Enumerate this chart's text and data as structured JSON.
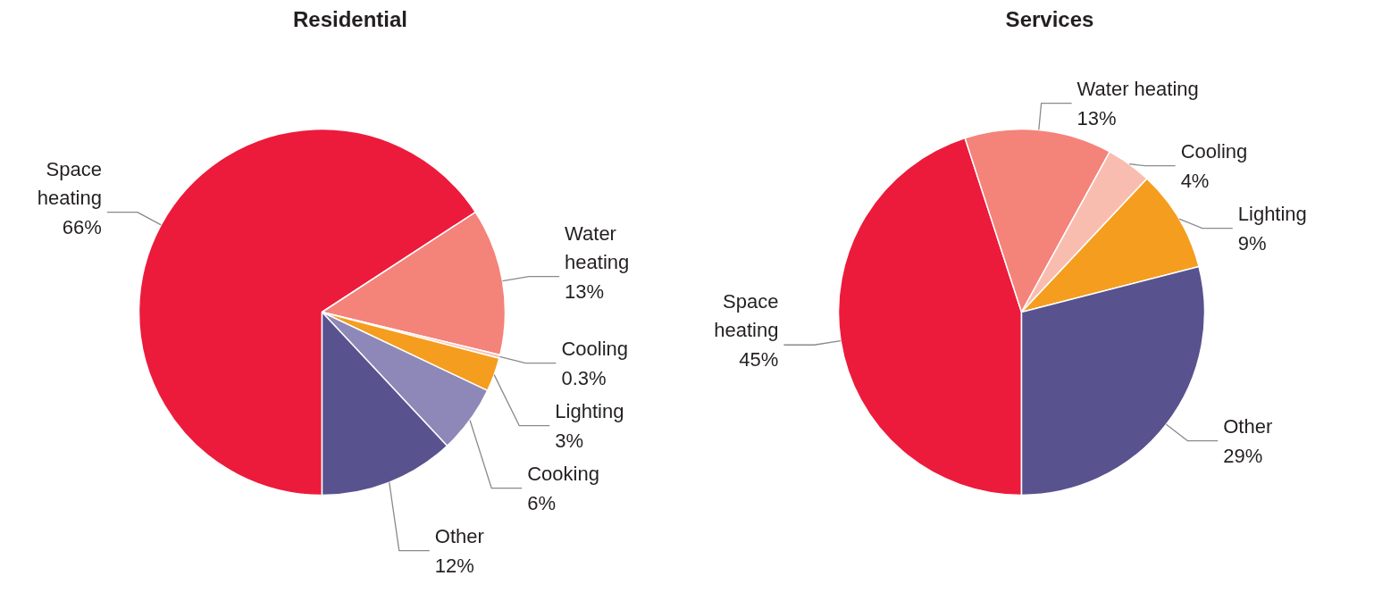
{
  "chart_data": [
    {
      "type": "pie",
      "title": "Residential",
      "categories": [
        "Space heating",
        "Water heating",
        "Cooling",
        "Lighting",
        "Cooking",
        "Other"
      ],
      "values": [
        66,
        13,
        0.3,
        3,
        6,
        12
      ],
      "value_labels": [
        "66%",
        "13%",
        "0.3%",
        "3%",
        "6%",
        "12%"
      ],
      "colors": [
        "#ec1b3b",
        "#f4837a",
        "#f9c3b8",
        "#f59d1e",
        "#8d88b8",
        "#58528f"
      ]
    },
    {
      "type": "pie",
      "title": "Services",
      "categories": [
        "Space heating",
        "Water heating",
        "Cooling",
        "Lighting",
        "Other"
      ],
      "values": [
        45,
        13,
        4,
        9,
        29
      ],
      "value_labels": [
        "45%",
        "13%",
        "4%",
        "9%",
        "29%"
      ],
      "colors": [
        "#ec1b3b",
        "#f4837a",
        "#f9bdb0",
        "#f59d1e",
        "#58528f"
      ]
    }
  ]
}
